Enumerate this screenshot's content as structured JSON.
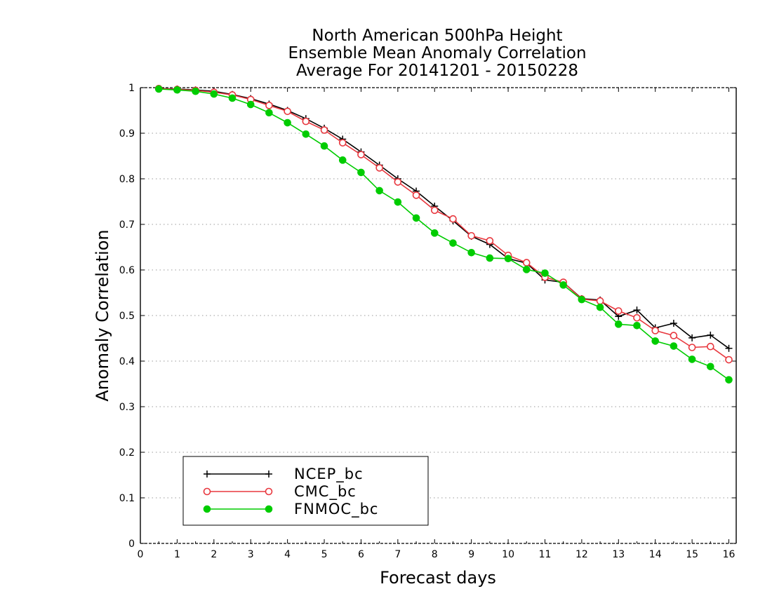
{
  "chart_data": {
    "type": "line",
    "title": [
      "North American 500hPa Height",
      "Ensemble Mean Anomaly Correlation",
      "Average For 20141201 - 20150228"
    ],
    "xlabel": "Forecast days",
    "ylabel": "Anomaly Correlation",
    "xlim": [
      0,
      16.2
    ],
    "ylim": [
      0,
      1
    ],
    "x_ticks": [
      0,
      1,
      2,
      3,
      4,
      5,
      6,
      7,
      8,
      9,
      10,
      11,
      12,
      13,
      14,
      15,
      16
    ],
    "x_tick_labels": [
      "0",
      "1",
      "2",
      "3",
      "4",
      "5",
      "6",
      "7",
      "8",
      "9",
      "10",
      "11",
      "12",
      "13",
      "14",
      "15",
      "16"
    ],
    "y_ticks": [
      0,
      0.1,
      0.2,
      0.3,
      0.4,
      0.5,
      0.6,
      0.7,
      0.8,
      0.9,
      1
    ],
    "y_tick_labels": [
      "0",
      "0.1",
      "0.2",
      "0.3",
      "0.4",
      "0.5",
      "0.6",
      "0.7",
      "0.8",
      "0.9",
      "1"
    ],
    "grid": "horizontal dotted",
    "legend_position": "bottom-left",
    "x": [
      0.5,
      1,
      1.5,
      2,
      2.5,
      3,
      3.5,
      4,
      4.5,
      5,
      5.5,
      6,
      6.5,
      7,
      7.5,
      8,
      8.5,
      9,
      9.5,
      10,
      10.5,
      11,
      11.5,
      12,
      12.5,
      13,
      13.5,
      14,
      14.5,
      15,
      15.5,
      16
    ],
    "series": [
      {
        "name": "NCEP_bc",
        "color": "#000000",
        "marker": "plus",
        "values": [
          0.998,
          0.997,
          0.995,
          0.992,
          0.985,
          0.976,
          0.964,
          0.95,
          0.932,
          0.911,
          0.887,
          0.859,
          0.83,
          0.8,
          0.773,
          0.74,
          0.708,
          0.674,
          0.656,
          0.625,
          0.615,
          0.578,
          0.573,
          0.537,
          0.534,
          0.498,
          0.512,
          0.473,
          0.483,
          0.451,
          0.457,
          0.428
        ]
      },
      {
        "name": "CMC_bc",
        "color": "#e8383f",
        "marker": "open-circle",
        "values": [
          0.998,
          0.996,
          0.994,
          0.99,
          0.984,
          0.974,
          0.961,
          0.948,
          0.926,
          0.907,
          0.879,
          0.853,
          0.824,
          0.793,
          0.764,
          0.731,
          0.712,
          0.675,
          0.664,
          0.632,
          0.616,
          0.584,
          0.573,
          0.536,
          0.532,
          0.51,
          0.495,
          0.467,
          0.456,
          0.43,
          0.432,
          0.403
        ]
      },
      {
        "name": "FNMOC_bc",
        "color": "#00cc00",
        "marker": "filled-circle",
        "values": [
          0.997,
          0.995,
          0.992,
          0.986,
          0.977,
          0.963,
          0.945,
          0.923,
          0.898,
          0.872,
          0.841,
          0.814,
          0.774,
          0.749,
          0.714,
          0.681,
          0.659,
          0.638,
          0.626,
          0.625,
          0.601,
          0.593,
          0.567,
          0.535,
          0.518,
          0.481,
          0.478,
          0.444,
          0.433,
          0.404,
          0.388,
          0.359
        ]
      }
    ]
  }
}
